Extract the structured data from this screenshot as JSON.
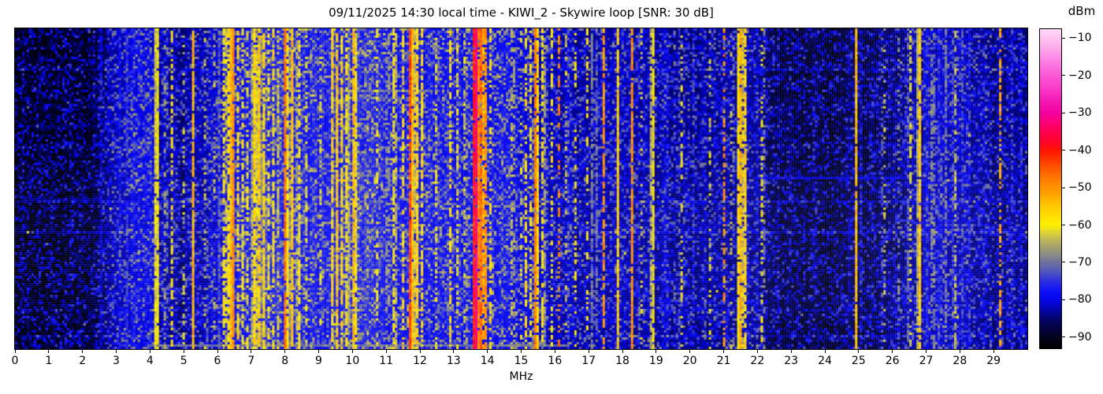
{
  "header": {
    "datetime": "09/11/2025 14:30",
    "time_kind": "local time",
    "station": "KIWI_2",
    "antenna": "Skywire loop",
    "snr": "30 dB"
  },
  "chart_data": {
    "type": "heatmap",
    "subtype": "radio-spectrogram-waterfall",
    "title": "09/11/2025 14:30 local time - KIWI_2 - Skywire loop [SNR: 30 dB]",
    "xlabel": "MHz",
    "x_range_mhz": [
      0,
      30
    ],
    "x_ticks": [
      0,
      1,
      2,
      3,
      4,
      5,
      6,
      7,
      8,
      9,
      10,
      11,
      12,
      13,
      14,
      15,
      16,
      17,
      18,
      19,
      20,
      21,
      22,
      23,
      24,
      25,
      26,
      27,
      28,
      29
    ],
    "x_tick_labels": [
      "0",
      "1",
      "2",
      "3",
      "4",
      "5",
      "6",
      "7",
      "8",
      "9",
      "10",
      "11",
      "12",
      "13",
      "14",
      "15",
      "16",
      "17",
      "18",
      "19",
      "20",
      "21",
      "22",
      "23",
      "24",
      "25",
      "26",
      "27",
      "28",
      "29"
    ],
    "grid": false,
    "legend": "none",
    "colorbar": {
      "label": "dBm",
      "position": "right",
      "ticks": [
        -10,
        -20,
        -30,
        -40,
        -50,
        -60,
        -70,
        -80,
        -90
      ],
      "tick_labels": [
        "−10",
        "−20",
        "−30",
        "−40",
        "−50",
        "−60",
        "−70",
        "−80",
        "−90"
      ],
      "vmin": -93,
      "vmax": -7.6,
      "colormap_stops": [
        [
          -93,
          "#000000"
        ],
        [
          -90,
          "#03031e"
        ],
        [
          -87,
          "#03034a"
        ],
        [
          -85,
          "#040470"
        ],
        [
          -82,
          "#0404bc"
        ],
        [
          -80,
          "#0505e8"
        ],
        [
          -78,
          "#0c0efa"
        ],
        [
          -76,
          "#2023ea"
        ],
        [
          -74,
          "#3a3fd2"
        ],
        [
          -72,
          "#565cb6"
        ],
        [
          -70,
          "#70719e"
        ],
        [
          -68,
          "#8a8a86"
        ],
        [
          -66,
          "#a29f6e"
        ],
        [
          -64,
          "#beb65a"
        ],
        [
          -62,
          "#ded236"
        ],
        [
          -60,
          "#fdf000"
        ],
        [
          -57,
          "#ffd800"
        ],
        [
          -55,
          "#ffc800"
        ],
        [
          -52,
          "#ffa600"
        ],
        [
          -50,
          "#ff9100"
        ],
        [
          -47,
          "#ff7200"
        ],
        [
          -45,
          "#ff5a00"
        ],
        [
          -42,
          "#ff3000"
        ],
        [
          -40,
          "#ff1400"
        ],
        [
          -38,
          "#ff0628"
        ],
        [
          -35,
          "#ff0050"
        ],
        [
          -32,
          "#fb0082"
        ],
        [
          -30,
          "#f4009e"
        ],
        [
          -27,
          "#f518b4"
        ],
        [
          -25,
          "#f82ac2"
        ],
        [
          -22,
          "#fa46ce"
        ],
        [
          -20,
          "#fb58d6"
        ],
        [
          -17,
          "#fc76e0"
        ],
        [
          -15,
          "#fe8ee8"
        ],
        [
          -12,
          "#ffb0ee"
        ],
        [
          -10,
          "#ffc4f2"
        ],
        [
          -7.6,
          "#ffdcf8"
        ]
      ]
    },
    "noise_floor_dbm": [
      [
        0,
        -91
      ],
      [
        1.5,
        -91
      ],
      [
        2.2,
        -90
      ],
      [
        2.6,
        -87
      ],
      [
        3.0,
        -84
      ],
      [
        3.5,
        -81
      ],
      [
        4.0,
        -80
      ],
      [
        4.3,
        -84
      ],
      [
        5.0,
        -85
      ],
      [
        5.7,
        -83
      ],
      [
        6.2,
        -80
      ],
      [
        7.0,
        -78
      ],
      [
        8.0,
        -78
      ],
      [
        9.0,
        -79
      ],
      [
        10.0,
        -77.5
      ],
      [
        11.0,
        -79
      ],
      [
        12.2,
        -79
      ],
      [
        13.0,
        -80
      ],
      [
        14.0,
        -79
      ],
      [
        15.0,
        -80.5
      ],
      [
        16.0,
        -83
      ],
      [
        17.0,
        -84
      ],
      [
        18.0,
        -83.5
      ],
      [
        19.0,
        -84
      ],
      [
        20.0,
        -85
      ],
      [
        21.0,
        -84
      ],
      [
        21.9,
        -84
      ],
      [
        22.4,
        -88
      ],
      [
        23.0,
        -89.5
      ],
      [
        24.2,
        -89.5
      ],
      [
        25.0,
        -88
      ],
      [
        26.0,
        -87
      ],
      [
        26.8,
        -84
      ],
      [
        27.3,
        -83
      ],
      [
        28.0,
        -83.5
      ],
      [
        28.6,
        -85
      ],
      [
        29.2,
        -85
      ],
      [
        30,
        -85.5
      ]
    ],
    "signal_fields": [
      "mhz",
      "width_mhz",
      "dbm",
      "duty"
    ],
    "signals": [
      [
        2.55,
        0.03,
        -80,
        0.8
      ],
      [
        2.78,
        0.03,
        -80,
        0.6
      ],
      [
        3.1,
        0.04,
        -78,
        0.8
      ],
      [
        3.33,
        0.05,
        -76,
        0.9
      ],
      [
        3.55,
        0.04,
        -77,
        0.85
      ],
      [
        3.7,
        0.04,
        -76,
        0.85
      ],
      [
        3.85,
        0.05,
        -75,
        0.9
      ],
      [
        4.0,
        0.04,
        -76,
        0.8
      ],
      [
        4.2,
        0.05,
        -56,
        0.95
      ],
      [
        4.47,
        0.03,
        -63,
        0.35
      ],
      [
        4.65,
        0.04,
        -59,
        0.55
      ],
      [
        5.0,
        0.03,
        -63,
        0.3
      ],
      [
        5.29,
        0.05,
        -53,
        0.92
      ],
      [
        5.65,
        0.03,
        -62,
        0.35
      ],
      [
        5.9,
        0.03,
        -64,
        0.3
      ],
      [
        6.07,
        0.04,
        -70,
        0.7
      ],
      [
        6.18,
        0.04,
        -58,
        0.6
      ],
      [
        6.3,
        0.04,
        -56,
        0.7
      ],
      [
        6.44,
        0.05,
        -46,
        0.95
      ],
      [
        6.6,
        0.06,
        -58,
        0.65
      ],
      [
        6.75,
        0.05,
        -60,
        0.55
      ],
      [
        6.9,
        0.04,
        -60,
        0.5
      ],
      [
        7.08,
        0.09,
        -56,
        0.85
      ],
      [
        7.22,
        0.09,
        -54,
        0.9
      ],
      [
        7.36,
        0.08,
        -56,
        0.85
      ],
      [
        7.5,
        0.05,
        -60,
        0.6
      ],
      [
        7.65,
        0.05,
        -58,
        0.6
      ],
      [
        7.78,
        0.04,
        -62,
        0.5
      ],
      [
        8.02,
        0.05,
        -46,
        0.9
      ],
      [
        8.1,
        0.05,
        -57,
        0.8
      ],
      [
        8.22,
        0.1,
        -55,
        0.9
      ],
      [
        8.4,
        0.06,
        -57,
        0.7
      ],
      [
        8.62,
        0.04,
        -60,
        0.45
      ],
      [
        9.05,
        0.04,
        -62,
        0.35
      ],
      [
        9.4,
        0.07,
        -57,
        0.8
      ],
      [
        9.55,
        0.06,
        -55,
        0.85
      ],
      [
        9.7,
        0.06,
        -56,
        0.8
      ],
      [
        9.85,
        0.05,
        -57,
        0.75
      ],
      [
        10.05,
        0.1,
        -53,
        0.92
      ],
      [
        10.35,
        0.04,
        -68,
        0.5
      ],
      [
        10.75,
        0.04,
        -60,
        0.4
      ],
      [
        11.05,
        0.04,
        -62,
        0.4
      ],
      [
        11.25,
        0.06,
        -57,
        0.7
      ],
      [
        11.5,
        0.04,
        -58,
        0.6
      ],
      [
        11.73,
        0.05,
        -42,
        0.96
      ],
      [
        11.9,
        0.07,
        -54,
        0.85
      ],
      [
        12.05,
        0.05,
        -57,
        0.7
      ],
      [
        12.5,
        0.04,
        -60,
        0.4
      ],
      [
        12.9,
        0.05,
        -58,
        0.6
      ],
      [
        13.1,
        0.04,
        -60,
        0.5
      ],
      [
        13.35,
        0.04,
        -60,
        0.4
      ],
      [
        13.65,
        0.05,
        -30,
        0.97
      ],
      [
        13.78,
        0.08,
        -42,
        0.9
      ],
      [
        13.92,
        0.05,
        -46,
        0.8
      ],
      [
        14.1,
        0.04,
        -58,
        0.45
      ],
      [
        14.45,
        0.03,
        -75,
        0.6
      ],
      [
        14.75,
        0.04,
        -60,
        0.4
      ],
      [
        15.0,
        0.03,
        -62,
        0.3
      ],
      [
        15.15,
        0.05,
        -57,
        0.6
      ],
      [
        15.3,
        0.04,
        -58,
        0.5
      ],
      [
        15.44,
        0.04,
        -46,
        0.9
      ],
      [
        15.65,
        0.05,
        -57,
        0.6
      ],
      [
        15.9,
        0.04,
        -58,
        0.4
      ],
      [
        16.12,
        0.035,
        -48,
        0.45
      ],
      [
        16.35,
        0.03,
        -62,
        0.3
      ],
      [
        16.6,
        0.04,
        -58,
        0.4
      ],
      [
        16.95,
        0.035,
        -58,
        0.45
      ],
      [
        17.1,
        0.04,
        -70,
        0.75
      ],
      [
        17.25,
        0.04,
        -70,
        0.7
      ],
      [
        17.45,
        0.04,
        -50,
        0.8
      ],
      [
        17.88,
        0.04,
        -55,
        0.95
      ],
      [
        18.28,
        0.04,
        -50,
        0.9
      ],
      [
        18.55,
        0.03,
        -62,
        0.3
      ],
      [
        18.89,
        0.04,
        -57,
        0.85
      ],
      [
        19.3,
        0.03,
        -75,
        0.7
      ],
      [
        19.74,
        0.03,
        -60,
        0.35
      ],
      [
        20.1,
        0.03,
        -76,
        0.6
      ],
      [
        20.6,
        0.03,
        -62,
        0.3
      ],
      [
        21.02,
        0.035,
        -50,
        0.5
      ],
      [
        21.25,
        0.03,
        -62,
        0.3
      ],
      [
        21.48,
        0.04,
        -50,
        0.9
      ],
      [
        21.62,
        0.04,
        -54,
        0.85
      ],
      [
        22.15,
        0.035,
        -58,
        0.45
      ],
      [
        22.6,
        0.02,
        -82,
        0.5
      ],
      [
        23.2,
        0.02,
        -84,
        0.4
      ],
      [
        24.0,
        0.02,
        -84,
        0.3
      ],
      [
        24.75,
        0.03,
        -80,
        0.6
      ],
      [
        24.93,
        0.05,
        -54,
        0.97
      ],
      [
        25.08,
        0.03,
        -78,
        0.6
      ],
      [
        25.75,
        0.03,
        -62,
        0.25
      ],
      [
        26.17,
        0.03,
        -68,
        0.35
      ],
      [
        26.52,
        0.03,
        -60,
        0.5
      ],
      [
        26.8,
        0.045,
        -54,
        0.9
      ],
      [
        27.0,
        0.03,
        -74,
        0.7
      ],
      [
        27.2,
        0.04,
        -64,
        0.5
      ],
      [
        27.4,
        0.04,
        -74,
        0.7
      ],
      [
        27.6,
        0.04,
        -70,
        0.6
      ],
      [
        27.85,
        0.05,
        -63,
        0.6
      ],
      [
        28.1,
        0.04,
        -72,
        0.6
      ],
      [
        28.3,
        0.03,
        -76,
        0.5
      ],
      [
        28.7,
        0.03,
        -78,
        0.5
      ],
      [
        29.2,
        0.035,
        -52,
        0.55
      ],
      [
        29.55,
        0.03,
        -76,
        0.6
      ],
      [
        29.8,
        0.03,
        -74,
        0.6
      ]
    ],
    "time_streaks": [
      {
        "y_frac": 0.1,
        "mhz_from": 10.5,
        "mhz_to": 11.9,
        "dbm": -74
      },
      {
        "y_frac": 0.195,
        "mhz_from": 9.6,
        "mhz_to": 12.35,
        "dbm": -70
      },
      {
        "y_frac": 0.215,
        "mhz_from": 10.2,
        "mhz_to": 11.7,
        "dbm": -74
      },
      {
        "y_frac": 0.3,
        "mhz_from": 0.5,
        "mhz_to": 4.2,
        "dbm": -85
      },
      {
        "y_frac": 0.458,
        "mhz_from": 9.4,
        "mhz_to": 12.4,
        "dbm": -71
      },
      {
        "y_frac": 0.465,
        "mhz_from": 21.9,
        "mhz_to": 26.4,
        "dbm": -80
      },
      {
        "y_frac": 0.53,
        "mhz_from": 0.3,
        "mhz_to": 4.4,
        "dbm": -84
      },
      {
        "y_frac": 0.99,
        "mhz_from": 3.9,
        "mhz_to": 16.4,
        "dbm": -70
      }
    ],
    "render_seed": 1337
  }
}
